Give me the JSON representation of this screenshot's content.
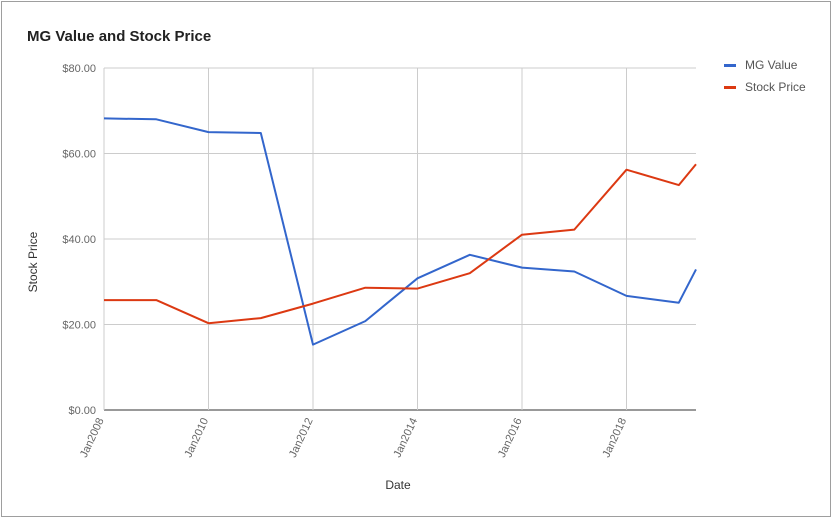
{
  "chart_data": {
    "type": "line",
    "title": "MG Value and Stock Price",
    "xlabel": "Date",
    "ylabel": "Stock Price",
    "x": [
      2008,
      2009,
      2010,
      2011,
      2012,
      2013,
      2014,
      2015,
      2016,
      2017,
      2018,
      2019,
      2019.33
    ],
    "xlim": [
      2008,
      2019.33
    ],
    "x_ticks": [
      {
        "value": 2008,
        "label": "Jan2008"
      },
      {
        "value": 2010,
        "label": "Jan2010"
      },
      {
        "value": 2012,
        "label": "Jan2012"
      },
      {
        "value": 2014,
        "label": "Jan2014"
      },
      {
        "value": 2016,
        "label": "Jan2016"
      },
      {
        "value": 2018,
        "label": "Jan2018"
      }
    ],
    "ylim": [
      0,
      80
    ],
    "y_ticks": [
      {
        "value": 0,
        "label": "$0.00"
      },
      {
        "value": 20,
        "label": "$20.00"
      },
      {
        "value": 40,
        "label": "$40.00"
      },
      {
        "value": 60,
        "label": "$60.00"
      },
      {
        "value": 80,
        "label": "$80.00"
      }
    ],
    "grid": true,
    "legend_position": "right",
    "series": [
      {
        "name": "MG Value",
        "color": "#3366cc",
        "values": [
          68.2,
          68.0,
          65.0,
          64.8,
          15.3,
          20.8,
          30.8,
          36.3,
          33.3,
          32.4,
          26.7,
          25.1,
          32.9
        ]
      },
      {
        "name": "Stock Price",
        "color": "#dc3912",
        "values": [
          25.7,
          25.7,
          20.3,
          21.5,
          24.9,
          28.6,
          28.4,
          32.0,
          41.0,
          42.2,
          56.2,
          52.6,
          57.5
        ]
      }
    ]
  }
}
